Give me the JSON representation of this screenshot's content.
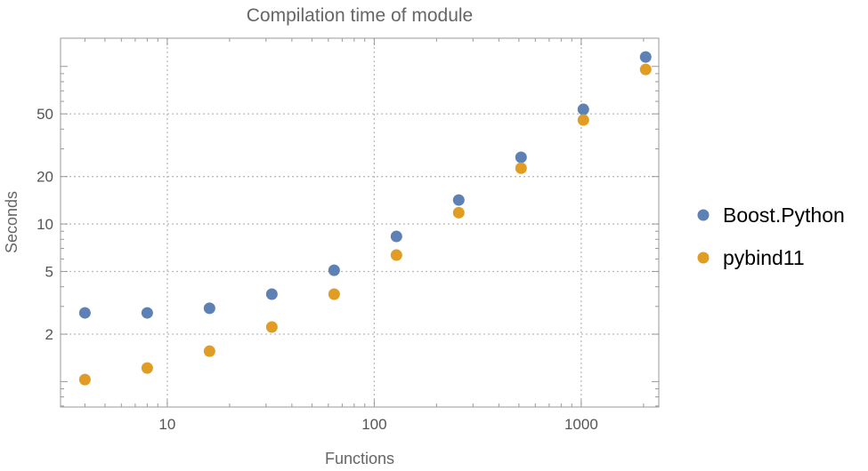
{
  "chart_data": {
    "type": "scatter",
    "title": "Compilation time of module",
    "xlabel": "Functions",
    "ylabel": "Seconds",
    "x_scale": "log",
    "y_scale": "log",
    "xlim": [
      3.05,
      2370
    ],
    "ylim": [
      0.69,
      151
    ],
    "x_ticks": [
      10,
      100,
      1000
    ],
    "x_tick_labels": [
      "10",
      "100",
      "1000"
    ],
    "y_ticks": [
      2,
      5,
      10,
      20,
      50
    ],
    "y_tick_labels": [
      "2",
      "5",
      "10",
      "20",
      "50"
    ],
    "grid": true,
    "legend_position": "right",
    "x": [
      4,
      8,
      16,
      32,
      64,
      128,
      256,
      512,
      1024,
      2048
    ],
    "series": [
      {
        "name": "Boost.Python",
        "color": "#5e81b5",
        "values": [
          2.73,
          2.73,
          2.92,
          3.59,
          5.09,
          8.34,
          14.2,
          26.5,
          53.4,
          114.8
        ]
      },
      {
        "name": "pybind11",
        "color": "#e19c24",
        "values": [
          1.03,
          1.22,
          1.56,
          2.22,
          3.59,
          6.35,
          11.8,
          22.6,
          45.7,
          95.7
        ]
      }
    ]
  }
}
